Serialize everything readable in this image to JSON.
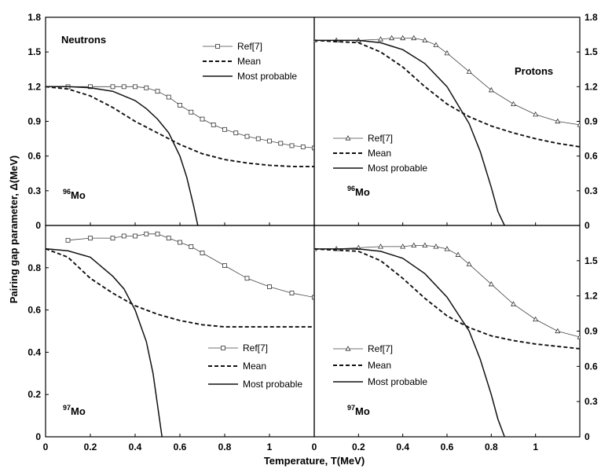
{
  "chart_data": {
    "type": "line",
    "xlabel": "Temperature, T(MeV)",
    "ylabel": "Pairing gap parameter, Δ(MeV)",
    "x_ticks": [
      "0",
      "0.2",
      "0.4",
      "0.6",
      "0.8",
      "1"
    ],
    "legend_labels": {
      "ref": "Ref[7]",
      "mean": "Mean",
      "most": "Most probable"
    },
    "series_styles": {
      "ref_neutron": "thin line with open square markers",
      "ref_proton": "thin line with open triangle markers",
      "mean": "dashed",
      "most": "solid"
    },
    "panels": [
      {
        "label": "Neutrons",
        "nucleus": {
          "mass": "96",
          "symbol": "Mo"
        },
        "y_axis_side": "left",
        "xlim": [
          0,
          1.2
        ],
        "ylim": [
          0,
          1.8
        ],
        "y_ticks": [
          "0",
          "0.3",
          "0.6",
          "0.9",
          "1.2",
          "1.5",
          "1.8"
        ],
        "grid": false,
        "legend_position": "top-right",
        "series": [
          {
            "key": "ref",
            "marker": "square",
            "x": [
              0.1,
              0.2,
              0.3,
              0.35,
              0.4,
              0.45,
              0.5,
              0.55,
              0.6,
              0.65,
              0.7,
              0.75,
              0.8,
              0.85,
              0.9,
              0.95,
              1.0,
              1.05,
              1.1,
              1.15,
              1.2
            ],
            "y": [
              1.2,
              1.2,
              1.2,
              1.2,
              1.2,
              1.19,
              1.16,
              1.11,
              1.04,
              0.98,
              0.92,
              0.87,
              0.83,
              0.8,
              0.77,
              0.75,
              0.73,
              0.71,
              0.69,
              0.68,
              0.67
            ]
          },
          {
            "key": "mean",
            "x": [
              0,
              0.1,
              0.2,
              0.3,
              0.4,
              0.5,
              0.6,
              0.7,
              0.8,
              0.9,
              1.0,
              1.1,
              1.2
            ],
            "y": [
              1.2,
              1.18,
              1.12,
              1.02,
              0.9,
              0.8,
              0.7,
              0.62,
              0.57,
              0.54,
              0.52,
              0.51,
              0.51
            ]
          },
          {
            "key": "most",
            "x": [
              0,
              0.1,
              0.2,
              0.3,
              0.4,
              0.45,
              0.5,
              0.55,
              0.6,
              0.63,
              0.66,
              0.68
            ],
            "y": [
              1.2,
              1.2,
              1.19,
              1.16,
              1.08,
              1.01,
              0.92,
              0.8,
              0.6,
              0.42,
              0.18,
              0.0
            ]
          }
        ]
      },
      {
        "label": "Protons",
        "nucleus": {
          "mass": "96",
          "symbol": "Mo"
        },
        "y_axis_side": "right",
        "xlim": [
          0,
          1.2
        ],
        "ylim": [
          0,
          1.8
        ],
        "y_ticks": [
          "0",
          "0.3",
          "0.6",
          "0.9",
          "1.2",
          "1.5",
          "1.8"
        ],
        "grid": false,
        "legend_position": "left",
        "series": [
          {
            "key": "ref",
            "marker": "triangle",
            "x": [
              0,
              0.1,
              0.2,
              0.3,
              0.35,
              0.4,
              0.45,
              0.5,
              0.55,
              0.6,
              0.7,
              0.8,
              0.9,
              1.0,
              1.1,
              1.2
            ],
            "y": [
              1.6,
              1.6,
              1.6,
              1.61,
              1.62,
              1.62,
              1.62,
              1.6,
              1.56,
              1.49,
              1.33,
              1.17,
              1.05,
              0.96,
              0.9,
              0.87
            ]
          },
          {
            "key": "mean",
            "x": [
              0,
              0.2,
              0.3,
              0.4,
              0.5,
              0.6,
              0.7,
              0.8,
              0.9,
              1.0,
              1.1,
              1.2
            ],
            "y": [
              1.6,
              1.58,
              1.5,
              1.37,
              1.2,
              1.05,
              0.94,
              0.86,
              0.8,
              0.75,
              0.71,
              0.68
            ]
          },
          {
            "key": "most",
            "x": [
              0,
              0.2,
              0.3,
              0.4,
              0.5,
              0.6,
              0.7,
              0.75,
              0.8,
              0.83,
              0.86
            ],
            "y": [
              1.6,
              1.6,
              1.58,
              1.52,
              1.4,
              1.2,
              0.88,
              0.64,
              0.33,
              0.12,
              0.0
            ]
          }
        ]
      },
      {
        "label": "",
        "nucleus": {
          "mass": "97",
          "symbol": "Mo"
        },
        "y_axis_side": "left",
        "xlim": [
          0,
          1.2
        ],
        "ylim": [
          0,
          1.0
        ],
        "y_ticks": [
          "0",
          "0.2",
          "0.4",
          "0.6",
          "0.8"
        ],
        "grid": false,
        "legend_position": "bottom-right",
        "series": [
          {
            "key": "ref",
            "marker": "square",
            "x": [
              0.1,
              0.2,
              0.3,
              0.35,
              0.4,
              0.45,
              0.5,
              0.55,
              0.6,
              0.65,
              0.7,
              0.8,
              0.9,
              1.0,
              1.1,
              1.2
            ],
            "y": [
              0.93,
              0.94,
              0.94,
              0.95,
              0.95,
              0.96,
              0.96,
              0.94,
              0.92,
              0.9,
              0.87,
              0.81,
              0.75,
              0.71,
              0.68,
              0.66
            ]
          },
          {
            "key": "mean",
            "x": [
              0,
              0.1,
              0.2,
              0.3,
              0.4,
              0.5,
              0.6,
              0.7,
              0.8,
              0.9,
              1.0,
              1.1,
              1.2
            ],
            "y": [
              0.89,
              0.85,
              0.75,
              0.68,
              0.62,
              0.58,
              0.55,
              0.53,
              0.52,
              0.52,
              0.52,
              0.52,
              0.52
            ]
          },
          {
            "key": "most",
            "x": [
              0,
              0.1,
              0.2,
              0.3,
              0.35,
              0.4,
              0.45,
              0.48,
              0.5,
              0.52
            ],
            "y": [
              0.89,
              0.88,
              0.85,
              0.76,
              0.7,
              0.6,
              0.45,
              0.3,
              0.15,
              0.0
            ]
          }
        ]
      },
      {
        "label": "",
        "nucleus": {
          "mass": "97",
          "symbol": "Mo"
        },
        "y_axis_side": "right",
        "xlim": [
          0,
          1.2
        ],
        "ylim": [
          0,
          1.8
        ],
        "y_ticks": [
          "0",
          "0.3",
          "0.6",
          "0.9",
          "1.2",
          "1.5"
        ],
        "grid": false,
        "legend_position": "bottom-left",
        "series": [
          {
            "key": "ref",
            "marker": "triangle",
            "x": [
              0,
              0.1,
              0.2,
              0.3,
              0.4,
              0.45,
              0.5,
              0.55,
              0.6,
              0.65,
              0.7,
              0.8,
              0.9,
              1.0,
              1.1,
              1.2
            ],
            "y": [
              1.6,
              1.6,
              1.61,
              1.62,
              1.62,
              1.63,
              1.63,
              1.62,
              1.6,
              1.55,
              1.47,
              1.3,
              1.13,
              1.0,
              0.9,
              0.85
            ]
          },
          {
            "key": "mean",
            "x": [
              0,
              0.2,
              0.3,
              0.4,
              0.5,
              0.6,
              0.7,
              0.8,
              0.9,
              1.0,
              1.1,
              1.2
            ],
            "y": [
              1.6,
              1.58,
              1.5,
              1.35,
              1.18,
              1.03,
              0.93,
              0.86,
              0.82,
              0.79,
              0.77,
              0.75
            ]
          },
          {
            "key": "most",
            "x": [
              0,
              0.2,
              0.3,
              0.4,
              0.5,
              0.6,
              0.7,
              0.75,
              0.8,
              0.83,
              0.86
            ],
            "y": [
              1.6,
              1.6,
              1.58,
              1.52,
              1.39,
              1.19,
              0.9,
              0.66,
              0.36,
              0.15,
              0.0
            ]
          }
        ]
      }
    ]
  }
}
